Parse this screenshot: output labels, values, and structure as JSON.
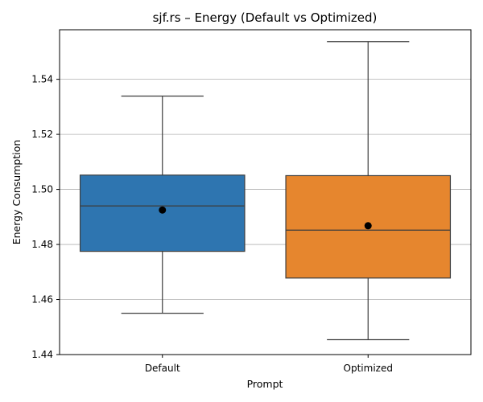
{
  "chart_data": {
    "type": "box",
    "title": "sjf.rs – Energy (Default vs Optimized)",
    "xlabel": "Prompt",
    "ylabel": "Energy Consumption",
    "ylim": [
      1.44,
      1.558
    ],
    "yticks": [
      1.44,
      1.46,
      1.48,
      1.5,
      1.52,
      1.54
    ],
    "ytick_labels": [
      "1.44",
      "1.46",
      "1.48",
      "1.50",
      "1.52",
      "1.54"
    ],
    "grid": "y",
    "categories": [
      "Default",
      "Optimized"
    ],
    "boxes": [
      {
        "category": "Default",
        "whisker_low": 1.455,
        "q1": 1.4775,
        "median": 1.494,
        "q3": 1.5052,
        "whisker_high": 1.5339,
        "mean": 1.4925,
        "color": "#2e75b0"
      },
      {
        "category": "Optimized",
        "whisker_low": 1.4454,
        "q1": 1.4678,
        "median": 1.4852,
        "q3": 1.505,
        "whisker_high": 1.5537,
        "mean": 1.4868,
        "color": "#e6862e"
      }
    ]
  }
}
